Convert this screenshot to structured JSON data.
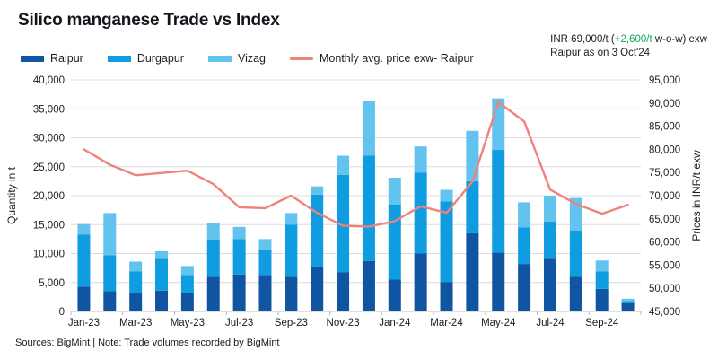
{
  "header": {
    "title": "Silico manganese Trade vs Index",
    "annotation": {
      "line1_prefix": "INR 69,000/t (",
      "line1_change": "+2,600/t",
      "line1_suffix": " w-o-w) exw",
      "line2": "Raipur as on 3 Oct'24",
      "change_color": "#12a457"
    }
  },
  "legend": [
    {
      "label": "Raipur",
      "type": "box",
      "color": "#0f55a2"
    },
    {
      "label": "Durgapur",
      "type": "box",
      "color": "#0f9ce0"
    },
    {
      "label": "Vizag",
      "type": "box",
      "color": "#63c3ef"
    },
    {
      "label": "Monthly avg. price exw- Raipur",
      "type": "line",
      "color": "#ef827a"
    }
  ],
  "chart_data": {
    "type": "bar",
    "subtype": "stacked-bars-with-line-overlay",
    "title": "Silico manganese Trade vs Index",
    "categories": [
      "Jan-23",
      "Feb-23",
      "Mar-23",
      "Apr-23",
      "May-23",
      "Jun-23",
      "Jul-23",
      "Aug-23",
      "Sep-23",
      "Oct-23",
      "Nov-23",
      "Dec-23",
      "Jan-24",
      "Feb-24",
      "Mar-24",
      "Apr-24",
      "May-24",
      "Jun-24",
      "Jul-24",
      "Aug-24",
      "Sep-24",
      "Oct-24"
    ],
    "x_label_every": 2,
    "grid": true,
    "series": [
      {
        "name": "Raipur",
        "color": "#0f55a2",
        "values": [
          4300,
          3500,
          3200,
          3600,
          3100,
          6000,
          6400,
          6300,
          6000,
          7600,
          6800,
          8700,
          5500,
          10000,
          5100,
          13500,
          10200,
          8200,
          9100,
          6000,
          3900,
          1400
        ]
      },
      {
        "name": "Durgapur",
        "color": "#0f9ce0",
        "values": [
          9000,
          6200,
          3700,
          5500,
          3200,
          6400,
          6100,
          4400,
          9000,
          12600,
          16800,
          18200,
          13000,
          14000,
          13900,
          9000,
          17700,
          6300,
          6400,
          8000,
          3000,
          400
        ]
      },
      {
        "name": "Vizag",
        "color": "#63c3ef",
        "values": [
          1800,
          7300,
          1700,
          1300,
          1550,
          2900,
          2100,
          1800,
          2000,
          1400,
          3300,
          9400,
          4600,
          4500,
          2000,
          8700,
          8900,
          4350,
          4500,
          5600,
          1900,
          400
        ]
      }
    ],
    "line": {
      "name": "Monthly avg. price exw- Raipur",
      "color": "#ef827a",
      "axis": "right",
      "values": [
        80000,
        76700,
        74400,
        74900,
        75400,
        72500,
        67500,
        67300,
        70000,
        66300,
        63500,
        63300,
        64500,
        67700,
        66300,
        73000,
        90200,
        86000,
        71300,
        68200,
        66100,
        68000
      ]
    },
    "left_axis": {
      "label": "Quantity in t",
      "min": 0,
      "max": 40000,
      "step": 5000
    },
    "right_axis": {
      "label": "Prices in INR/t exw",
      "min": 45000,
      "max": 95000,
      "step": 5000
    },
    "legend_position": "top-left"
  },
  "footer": {
    "text": "Sources: BigMint | Note: Trade volumes recorded by BigMint"
  }
}
